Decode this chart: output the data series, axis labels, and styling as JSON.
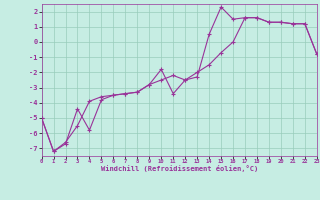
{
  "xlabel": "Windchill (Refroidissement éolien,°C)",
  "xlim": [
    0,
    23
  ],
  "ylim": [
    -7.5,
    2.5
  ],
  "yticks": [
    2,
    1,
    0,
    -1,
    -2,
    -3,
    -4,
    -5,
    -6,
    -7
  ],
  "xticks": [
    0,
    1,
    2,
    3,
    4,
    5,
    6,
    7,
    8,
    9,
    10,
    11,
    12,
    13,
    14,
    15,
    16,
    17,
    18,
    19,
    20,
    21,
    22,
    23
  ],
  "bg_color": "#c6ede3",
  "line_color": "#993399",
  "grid_color": "#99ccbb",
  "line1_x": [
    0,
    1,
    2,
    3,
    4,
    5,
    6,
    7,
    8,
    9,
    10,
    11,
    12,
    13,
    14,
    15,
    16,
    17,
    18,
    19,
    20,
    21,
    22,
    23
  ],
  "line1_y": [
    -5.0,
    -7.2,
    -6.7,
    -4.4,
    -5.8,
    -3.8,
    -3.5,
    -3.4,
    -3.3,
    -2.8,
    -1.8,
    -3.4,
    -2.5,
    -2.3,
    0.5,
    2.3,
    1.5,
    1.6,
    1.6,
    1.3,
    1.3,
    1.2,
    1.2,
    -0.8
  ],
  "line2_x": [
    0,
    1,
    2,
    3,
    4,
    5,
    6,
    7,
    8,
    9,
    10,
    11,
    12,
    13,
    14,
    15,
    16,
    17,
    18,
    19,
    20,
    21,
    22,
    23
  ],
  "line2_y": [
    -5.0,
    -7.2,
    -6.6,
    -5.5,
    -3.9,
    -3.6,
    -3.5,
    -3.4,
    -3.3,
    -2.8,
    -2.5,
    -2.2,
    -2.5,
    -2.0,
    -1.5,
    -0.7,
    0.0,
    1.6,
    1.6,
    1.3,
    1.3,
    1.2,
    1.2,
    -0.8
  ]
}
